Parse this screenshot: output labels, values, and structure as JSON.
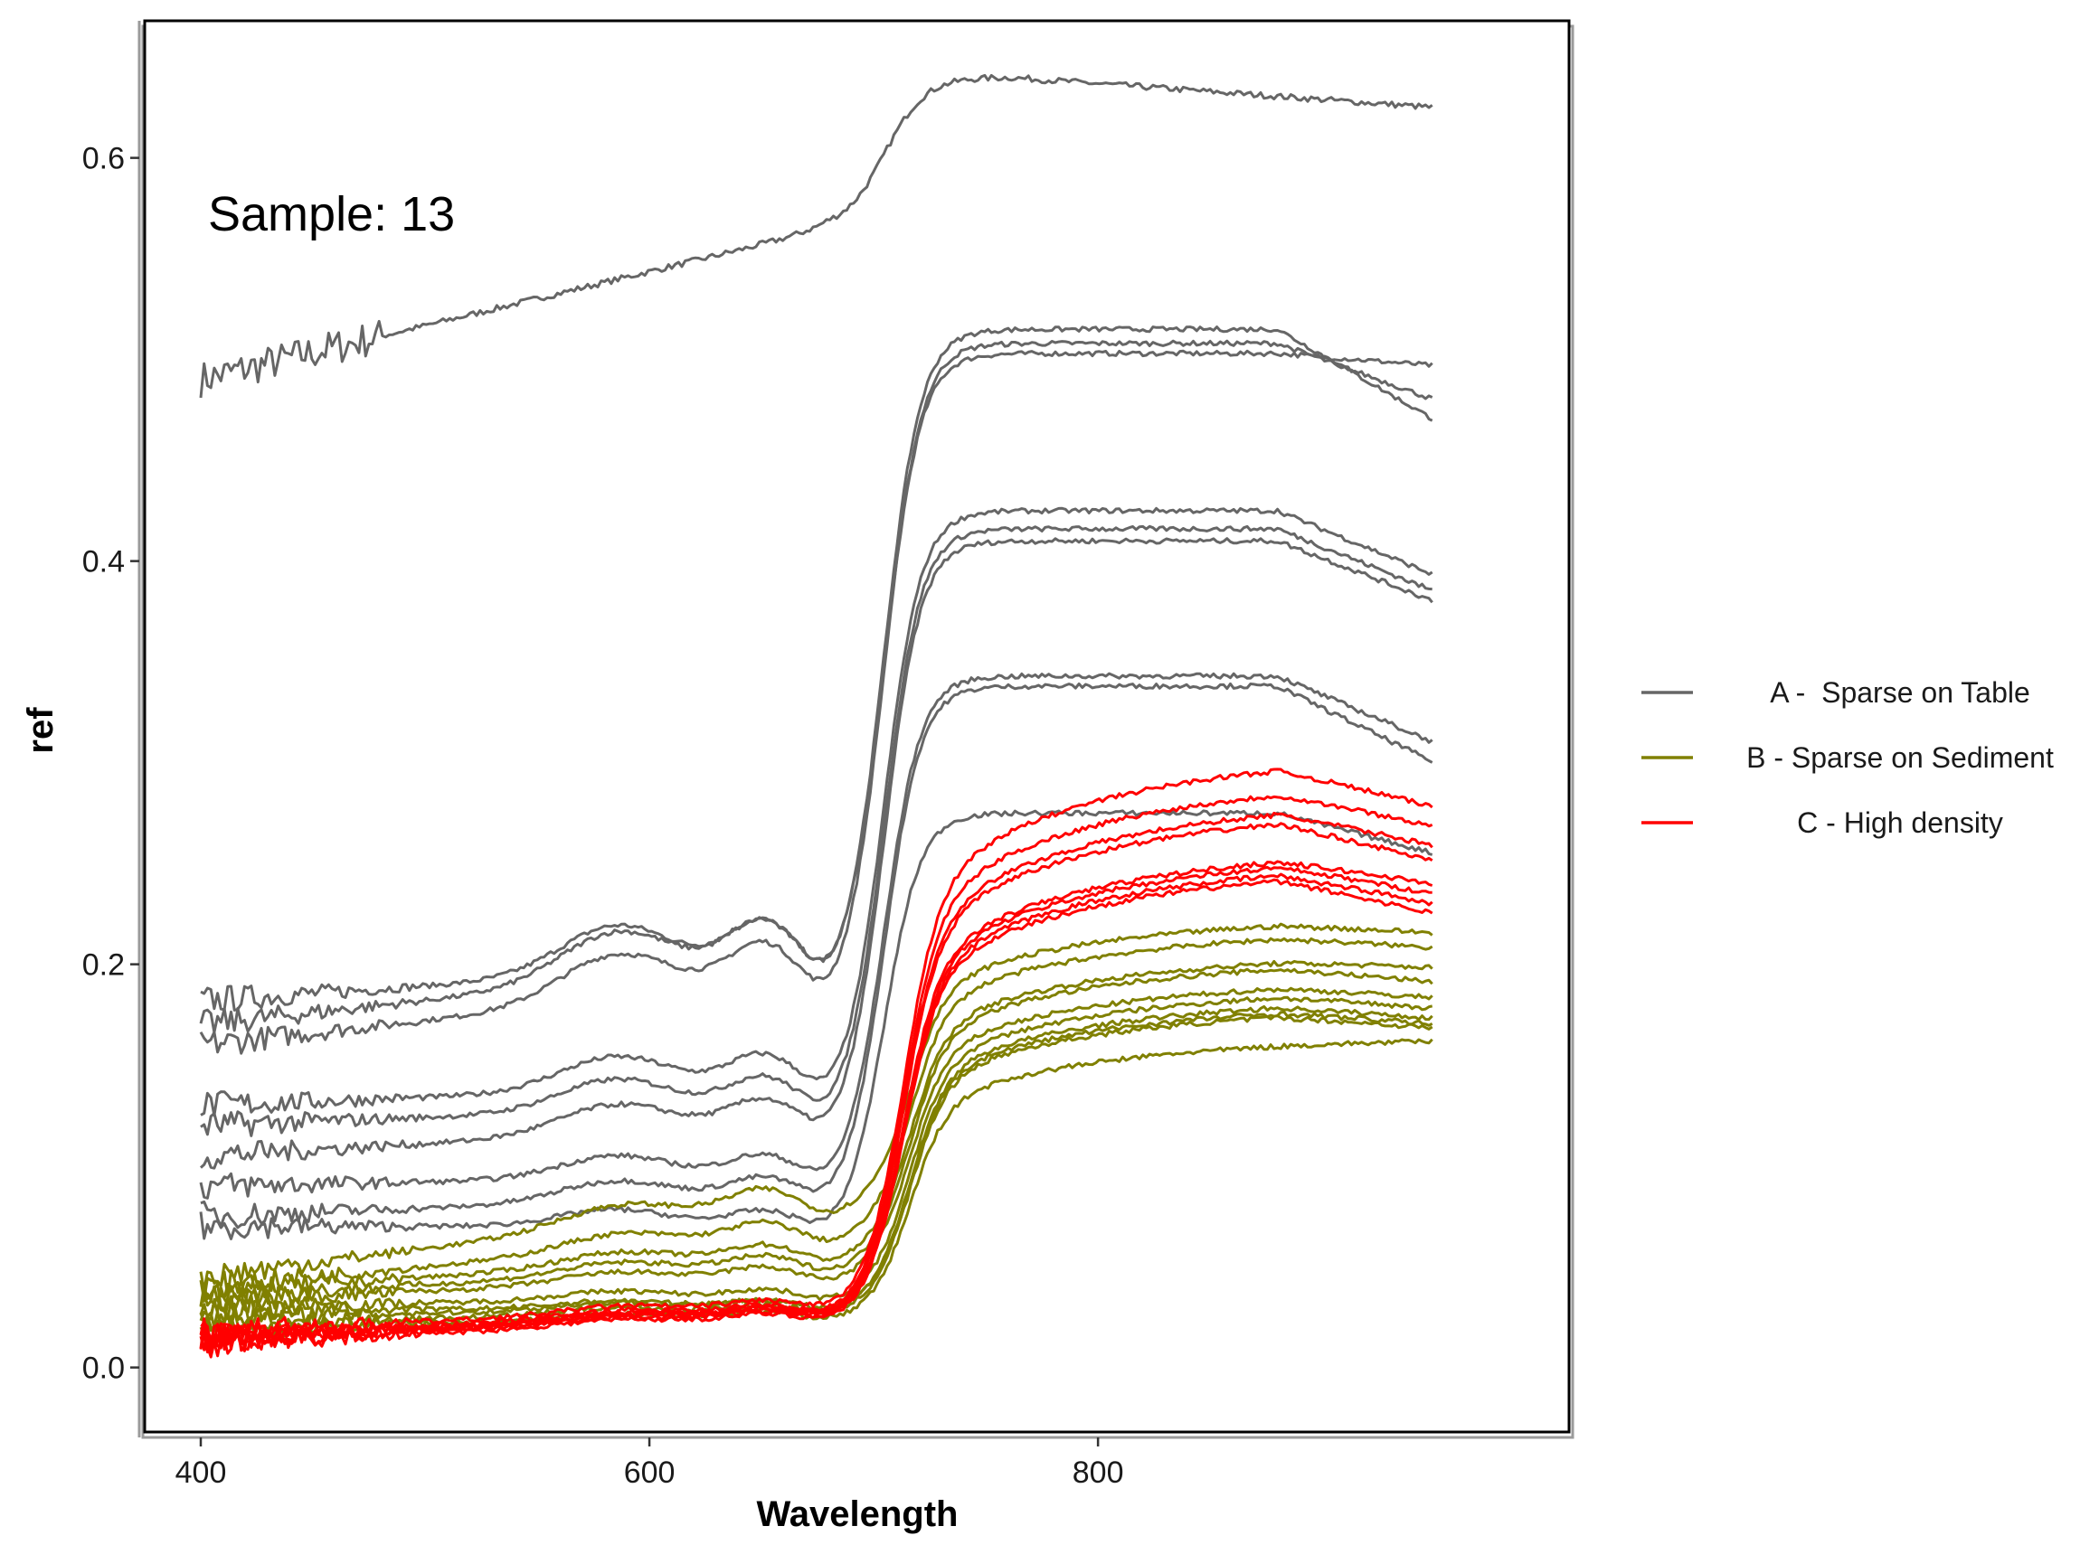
{
  "chart_data": {
    "type": "line",
    "title": "",
    "annotation": "Sample: 13",
    "xlabel": "Wavelength",
    "ylabel": "ref",
    "xlim": [
      375,
      1010
    ],
    "ylim": [
      -0.032,
      0.668
    ],
    "x_ticks": [
      {
        "value": 400,
        "label": "400"
      },
      {
        "value": 600,
        "label": "600"
      },
      {
        "value": 800,
        "label": "800"
      }
    ],
    "y_ticks": [
      {
        "value": 0.0,
        "label": "0.0"
      },
      {
        "value": 0.2,
        "label": "0.2"
      },
      {
        "value": 0.4,
        "label": "0.4"
      },
      {
        "value": 0.6,
        "label": "0.6"
      }
    ],
    "x_range": [
      400,
      950
    ],
    "grid": false,
    "legend_position": "right",
    "legend": [
      {
        "group": "A",
        "label": "A -  Sparse on Table",
        "color": "#666666"
      },
      {
        "group": "B",
        "label": "B - Sparse on Sediment",
        "color": "#808000"
      },
      {
        "group": "C",
        "label": "C - High density",
        "color": "#ff0000"
      }
    ],
    "series": [
      {
        "group": "A",
        "lo": 0.49,
        "mid": 0.565,
        "hi": 0.64,
        "end": 0.625,
        "peak_at": 0.0,
        "wiggle": 0.0015,
        "mode": "flat"
      },
      {
        "group": "A",
        "lo": 0.182,
        "mid": 0.2,
        "hi": 0.503,
        "end": 0.497
      },
      {
        "group": "A",
        "lo": 0.16,
        "mid": 0.19,
        "hi": 0.508,
        "end": 0.48
      },
      {
        "group": "A",
        "lo": 0.17,
        "mid": 0.2,
        "hi": 0.515,
        "end": 0.47
      },
      {
        "group": "A",
        "lo": 0.13,
        "mid": 0.14,
        "hi": 0.425,
        "end": 0.393
      },
      {
        "group": "A",
        "lo": 0.12,
        "mid": 0.13,
        "hi": 0.416,
        "end": 0.385
      },
      {
        "group": "A",
        "lo": 0.105,
        "mid": 0.12,
        "hi": 0.41,
        "end": 0.38
      },
      {
        "group": "A",
        "lo": 0.09,
        "mid": 0.095,
        "hi": 0.343,
        "end": 0.31
      },
      {
        "group": "A",
        "lo": 0.075,
        "mid": 0.085,
        "hi": 0.338,
        "end": 0.3
      },
      {
        "group": "A",
        "lo": 0.07,
        "mid": 0.07,
        "hi": 0.275,
        "end": 0.255
      },
      {
        "group": "B",
        "lo": 0.045,
        "mid": 0.08,
        "hi": 0.228,
        "end": 0.222
      },
      {
        "group": "B",
        "lo": 0.04,
        "mid": 0.065,
        "hi": 0.222,
        "end": 0.215
      },
      {
        "group": "B",
        "lo": 0.038,
        "mid": 0.055,
        "hi": 0.21,
        "end": 0.205
      },
      {
        "group": "B",
        "lo": 0.035,
        "mid": 0.05,
        "hi": 0.207,
        "end": 0.198
      },
      {
        "group": "B",
        "lo": 0.033,
        "mid": 0.045,
        "hi": 0.197,
        "end": 0.19
      },
      {
        "group": "B",
        "lo": 0.03,
        "mid": 0.035,
        "hi": 0.193,
        "end": 0.185
      },
      {
        "group": "B",
        "lo": 0.028,
        "mid": 0.03,
        "hi": 0.188,
        "end": 0.18
      },
      {
        "group": "B",
        "lo": 0.025,
        "mid": 0.03,
        "hi": 0.185,
        "end": 0.177
      },
      {
        "group": "B",
        "lo": 0.022,
        "mid": 0.028,
        "hi": 0.183,
        "end": 0.175
      },
      {
        "group": "B",
        "lo": 0.02,
        "mid": 0.025,
        "hi": 0.168,
        "end": 0.168
      },
      {
        "group": "C",
        "lo": 0.018,
        "mid": 0.03,
        "hi": 0.313,
        "end": 0.29
      },
      {
        "group": "C",
        "lo": 0.016,
        "mid": 0.028,
        "hi": 0.3,
        "end": 0.28
      },
      {
        "group": "C",
        "lo": 0.015,
        "mid": 0.027,
        "hi": 0.29,
        "end": 0.27
      },
      {
        "group": "C",
        "lo": 0.015,
        "mid": 0.027,
        "hi": 0.285,
        "end": 0.262
      },
      {
        "group": "C",
        "lo": 0.014,
        "mid": 0.026,
        "hi": 0.265,
        "end": 0.25
      },
      {
        "group": "C",
        "lo": 0.014,
        "mid": 0.026,
        "hi": 0.262,
        "end": 0.245
      },
      {
        "group": "C",
        "lo": 0.013,
        "mid": 0.025,
        "hi": 0.258,
        "end": 0.24
      },
      {
        "group": "C",
        "lo": 0.012,
        "mid": 0.024,
        "hi": 0.255,
        "end": 0.235
      }
    ]
  }
}
